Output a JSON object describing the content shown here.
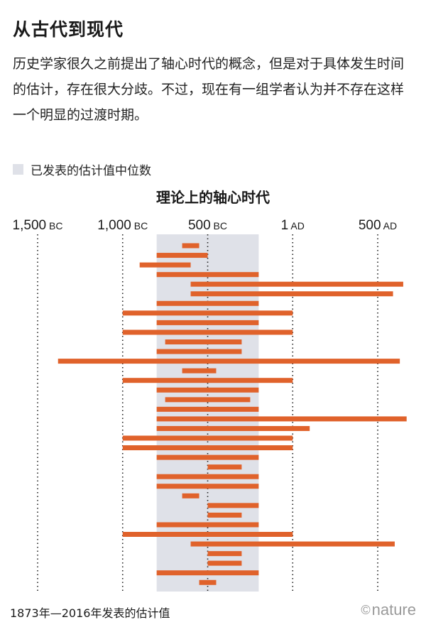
{
  "header": {
    "title": "从古代到现代",
    "description": "历史学家很久之前提出了轴心时代的概念，但是对于具体发生时间的估计，存在很大分歧。不过，现在有一组学者认为并不存在这样一个明显的过渡时期。"
  },
  "legend": {
    "label": "已发表的估计值中位数"
  },
  "footer": {
    "note": "1873年—2016年发表的估计值",
    "brand": "nature",
    "copyright_symbol": "©"
  },
  "colors": {
    "bar": "#e0622b",
    "median_band": "#dfe1e8",
    "text": "#1a1a1a"
  },
  "chart_data": {
    "type": "bar",
    "orientation": "horizontal range",
    "title": "理论上的轴心时代",
    "xaxis_ticks": [
      {
        "value": -1500,
        "num": "1,500",
        "unit": "BC"
      },
      {
        "value": -1000,
        "num": "1,000",
        "unit": "BC"
      },
      {
        "value": -500,
        "num": "500",
        "unit": "BC"
      },
      {
        "value": 0,
        "num": "1",
        "unit": "AD"
      },
      {
        "value": 500,
        "num": "500",
        "unit": "AD"
      }
    ],
    "xlim": [
      -1680,
      700
    ],
    "median_band": [
      -800,
      -200
    ],
    "grid": "vertical dotted lines at ticks",
    "ranges": [
      [
        -650,
        -550
      ],
      [
        -800,
        -500
      ],
      [
        -900,
        -600
      ],
      [
        -800,
        -200
      ],
      [
        -600,
        650
      ],
      [
        -600,
        590
      ],
      [
        -800,
        -200
      ],
      [
        -1000,
        0
      ],
      [
        -800,
        -200
      ],
      [
        -1000,
        0
      ],
      [
        -750,
        -300
      ],
      [
        -800,
        -300
      ],
      [
        -1380,
        630
      ],
      [
        -650,
        -450
      ],
      [
        -1000,
        0
      ],
      [
        -800,
        -200
      ],
      [
        -750,
        -250
      ],
      [
        -800,
        -200
      ],
      [
        -800,
        670
      ],
      [
        -800,
        100
      ],
      [
        -1000,
        0
      ],
      [
        -1000,
        0
      ],
      [
        -800,
        -200
      ],
      [
        -500,
        -300
      ],
      [
        -800,
        -200
      ],
      [
        -800,
        -200
      ],
      [
        -650,
        -550
      ],
      [
        -500,
        -200
      ],
      [
        -500,
        -300
      ],
      [
        -800,
        -200
      ],
      [
        -1000,
        0
      ],
      [
        -600,
        600
      ],
      [
        -500,
        -300
      ],
      [
        -500,
        -300
      ],
      [
        -800,
        -200
      ],
      [
        -550,
        -450
      ]
    ]
  }
}
